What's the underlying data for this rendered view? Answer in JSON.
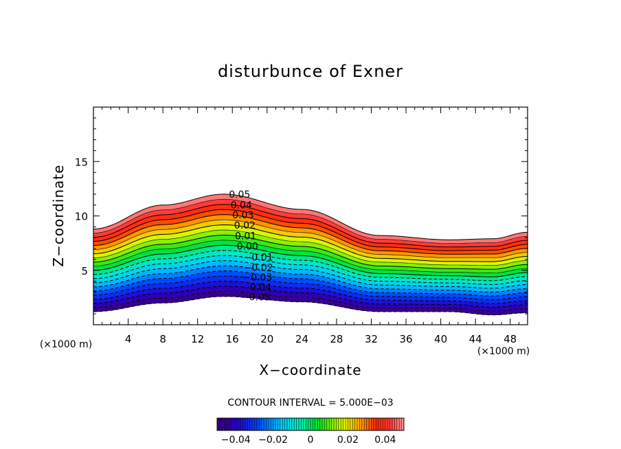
{
  "chart_data": {
    "type": "contour",
    "title": "disturbunce of Exner",
    "xlabel": "X−coordinate",
    "ylabel": "Z−coordinate",
    "x_unit": "(×1000 m)",
    "y_unit": "(×1000 m)",
    "xlim": [
      0,
      50
    ],
    "ylim": [
      0,
      20
    ],
    "xticks": [
      4,
      8,
      12,
      16,
      20,
      24,
      28,
      32,
      36,
      40,
      44,
      48
    ],
    "yticks": [
      5,
      10,
      15
    ],
    "contour_interval_text": "CONTOUR INTERVAL = 5.000E−03",
    "contour_interval": 0.005,
    "levels": [
      -0.05,
      -0.045,
      -0.04,
      -0.035,
      -0.03,
      -0.025,
      -0.02,
      -0.015,
      -0.01,
      -0.005,
      0,
      0.005,
      0.01,
      0.015,
      0.02,
      0.025,
      0.03,
      0.035,
      0.04,
      0.045,
      0.05
    ],
    "contour_labels": [
      "0.05",
      "0.04",
      "0.03",
      "0.02",
      "0.01",
      "0.00",
      "−0.01",
      "−0.02",
      "−0.03",
      "−0.04",
      "−0.05"
    ],
    "terrain_bottom": [
      {
        "x": 0,
        "z": 1.2
      },
      {
        "x": 8,
        "z": 2.0
      },
      {
        "x": 15,
        "z": 2.6
      },
      {
        "x": 24,
        "z": 2.1
      },
      {
        "x": 33,
        "z": 1.2
      },
      {
        "x": 41,
        "z": 1.2
      },
      {
        "x": 46,
        "z": 0.9
      },
      {
        "x": 50,
        "z": 1.1
      }
    ],
    "top_boundary": [
      {
        "x": 0,
        "z": 8.8
      },
      {
        "x": 8,
        "z": 11.0
      },
      {
        "x": 15,
        "z": 12.0
      },
      {
        "x": 24,
        "z": 10.6
      },
      {
        "x": 33,
        "z": 8.2
      },
      {
        "x": 41,
        "z": 7.8
      },
      {
        "x": 46,
        "z": 7.9
      },
      {
        "x": 50,
        "z": 8.5
      }
    ],
    "colorbar": {
      "ticks": [
        "−0.04",
        "−0.02",
        "0",
        "0.02",
        "0.04"
      ],
      "tick_values": [
        -0.04,
        -0.02,
        0,
        0.02,
        0.04
      ],
      "range": [
        -0.05,
        0.05
      ]
    }
  }
}
